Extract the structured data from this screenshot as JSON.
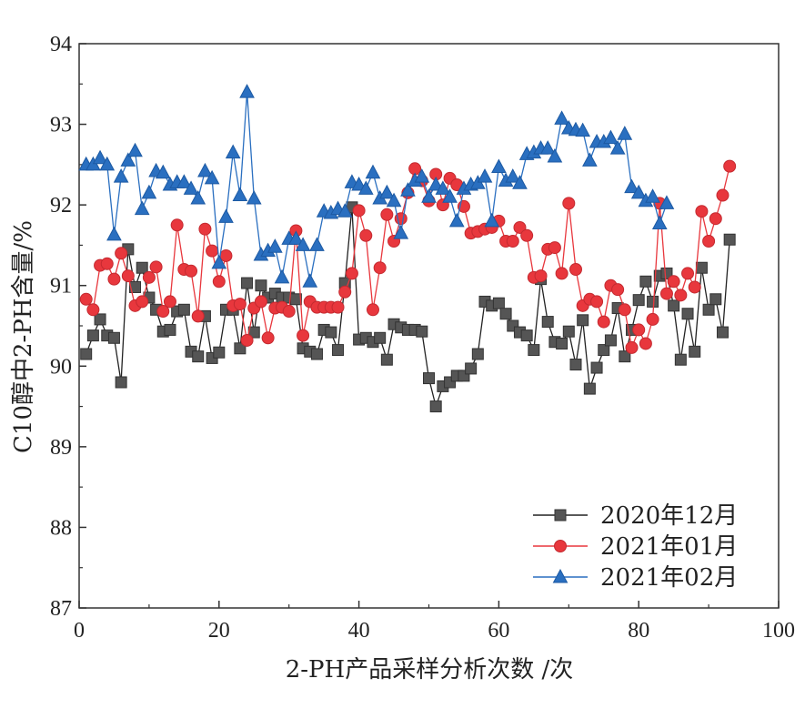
{
  "chart_data": {
    "type": "line",
    "xlabel": "2-PH产品采样分析次数 /次",
    "ylabel": "C10醇中2-PH含量/%",
    "xlim": [
      0,
      100
    ],
    "ylim": [
      87,
      94
    ],
    "xticks": [
      0,
      20,
      40,
      60,
      80,
      100
    ],
    "yticks": [
      87,
      88,
      89,
      90,
      91,
      92,
      93,
      94
    ],
    "grid": false,
    "legend_position": "bottom-right",
    "series": [
      {
        "name": "2020年12月",
        "color": "#222222",
        "marker": "square",
        "x": [
          1,
          2,
          3,
          4,
          5,
          6,
          7,
          8,
          9,
          10,
          11,
          12,
          13,
          14,
          15,
          16,
          17,
          18,
          19,
          20,
          21,
          22,
          23,
          24,
          25,
          26,
          27,
          28,
          29,
          30,
          31,
          32,
          33,
          34,
          35,
          36,
          37,
          38,
          39,
          40,
          41,
          42,
          43,
          44,
          45,
          46,
          47,
          48,
          49,
          50,
          51,
          52,
          53,
          54,
          55,
          56,
          57,
          58,
          59,
          60,
          61,
          62,
          63,
          64,
          65,
          66,
          67,
          68,
          69,
          70,
          71,
          72,
          73,
          74,
          75,
          76,
          77,
          78,
          79,
          80,
          81,
          82,
          83,
          84,
          85,
          86,
          87,
          88,
          89,
          90,
          91,
          92,
          93
        ],
        "y": [
          90.15,
          90.38,
          90.58,
          90.38,
          90.35,
          89.8,
          91.45,
          90.98,
          91.22,
          90.85,
          90.7,
          90.43,
          90.45,
          90.68,
          90.7,
          90.18,
          90.12,
          90.62,
          90.1,
          90.17,
          90.7,
          90.7,
          90.22,
          91.03,
          90.42,
          91.0,
          90.85,
          90.9,
          90.85,
          90.85,
          90.83,
          90.22,
          90.18,
          90.15,
          90.45,
          90.42,
          90.2,
          91.03,
          91.97,
          90.33,
          90.35,
          90.3,
          90.35,
          90.08,
          90.52,
          90.48,
          90.45,
          90.45,
          90.43,
          89.85,
          89.5,
          89.75,
          89.8,
          89.88,
          89.88,
          89.97,
          90.15,
          90.8,
          90.75,
          90.78,
          90.65,
          90.5,
          90.42,
          90.38,
          90.2,
          91.08,
          90.55,
          90.3,
          90.28,
          90.43,
          90.02,
          90.57,
          89.72,
          89.98,
          90.2,
          90.32,
          90.72,
          90.12,
          90.45,
          90.82,
          91.05,
          90.8,
          91.12,
          91.15,
          90.75,
          90.08,
          90.65,
          90.18,
          91.22,
          90.7,
          90.83,
          90.42,
          91.57
        ]
      },
      {
        "name": "2021年01月",
        "color": "#e8373d",
        "marker": "circle",
        "x": [
          1,
          2,
          3,
          4,
          5,
          6,
          7,
          8,
          9,
          10,
          11,
          12,
          13,
          14,
          15,
          16,
          17,
          18,
          19,
          20,
          21,
          22,
          23,
          24,
          25,
          26,
          27,
          28,
          29,
          30,
          31,
          32,
          33,
          34,
          35,
          36,
          37,
          38,
          39,
          40,
          41,
          42,
          43,
          44,
          45,
          46,
          47,
          48,
          49,
          50,
          51,
          52,
          53,
          54,
          55,
          56,
          57,
          58,
          59,
          60,
          61,
          62,
          63,
          64,
          65,
          66,
          67,
          68,
          69,
          70,
          71,
          72,
          73,
          74,
          75,
          76,
          77,
          78,
          79,
          80,
          81,
          82,
          83,
          84,
          85,
          86,
          87,
          88,
          89,
          90,
          91,
          92,
          93
        ],
        "y": [
          90.83,
          90.7,
          91.25,
          91.27,
          91.08,
          91.4,
          91.12,
          90.75,
          90.8,
          91.1,
          91.23,
          90.68,
          90.8,
          91.75,
          91.2,
          91.18,
          90.62,
          91.7,
          91.43,
          91.05,
          91.37,
          90.75,
          90.77,
          90.32,
          90.72,
          90.8,
          90.35,
          90.72,
          90.73,
          90.68,
          91.68,
          90.38,
          90.8,
          90.73,
          90.73,
          90.73,
          90.73,
          90.92,
          91.15,
          91.93,
          91.62,
          90.7,
          91.22,
          91.88,
          91.55,
          91.83,
          92.15,
          92.45,
          92.3,
          92.05,
          92.38,
          92.0,
          92.33,
          92.25,
          91.98,
          91.65,
          91.67,
          91.7,
          91.72,
          91.8,
          91.55,
          91.55,
          91.72,
          91.62,
          91.1,
          91.12,
          91.45,
          91.47,
          91.15,
          92.02,
          91.2,
          90.75,
          90.83,
          90.8,
          90.55,
          91.0,
          90.95,
          90.7,
          90.23,
          90.45,
          90.28,
          90.58,
          92.02,
          90.9,
          91.05,
          90.88,
          91.15,
          90.98,
          91.92,
          91.55,
          91.83,
          92.12,
          92.48
        ]
      },
      {
        "name": "2021年02月",
        "color": "#2a6fc0",
        "marker": "triangle",
        "x": [
          1,
          2,
          3,
          4,
          5,
          6,
          7,
          8,
          9,
          10,
          11,
          12,
          13,
          14,
          15,
          16,
          17,
          18,
          19,
          20,
          21,
          22,
          23,
          24,
          25,
          26,
          27,
          28,
          29,
          30,
          31,
          32,
          33,
          34,
          35,
          36,
          37,
          38,
          39,
          40,
          41,
          42,
          43,
          44,
          45,
          46,
          47,
          48,
          49,
          50,
          51,
          52,
          53,
          54,
          55,
          56,
          57,
          58,
          59,
          60,
          61,
          62,
          63,
          64,
          65,
          66,
          67,
          68,
          69,
          70,
          71,
          72,
          73,
          74,
          75,
          76,
          77,
          78,
          79,
          80,
          81,
          82,
          83,
          84
        ],
        "y": [
          92.5,
          92.5,
          92.58,
          92.5,
          91.63,
          92.35,
          92.55,
          92.67,
          91.95,
          92.15,
          92.42,
          92.4,
          92.25,
          92.28,
          92.28,
          92.2,
          92.08,
          92.42,
          92.33,
          91.28,
          91.85,
          92.65,
          92.12,
          93.4,
          92.08,
          91.38,
          91.43,
          91.48,
          91.1,
          91.58,
          91.58,
          91.5,
          91.05,
          91.5,
          91.92,
          91.9,
          91.95,
          91.92,
          92.28,
          92.25,
          92.2,
          92.4,
          92.08,
          92.15,
          92.05,
          91.65,
          92.18,
          92.3,
          92.35,
          92.1,
          92.25,
          92.2,
          92.1,
          91.8,
          92.2,
          92.25,
          92.27,
          92.35,
          91.8,
          92.47,
          92.3,
          92.35,
          92.27,
          92.63,
          92.65,
          92.7,
          92.7,
          92.6,
          93.07,
          92.95,
          92.93,
          92.92,
          92.55,
          92.78,
          92.78,
          92.83,
          92.7,
          92.88,
          92.22,
          92.15,
          92.05,
          92.1,
          91.77,
          92.02
        ]
      }
    ]
  }
}
